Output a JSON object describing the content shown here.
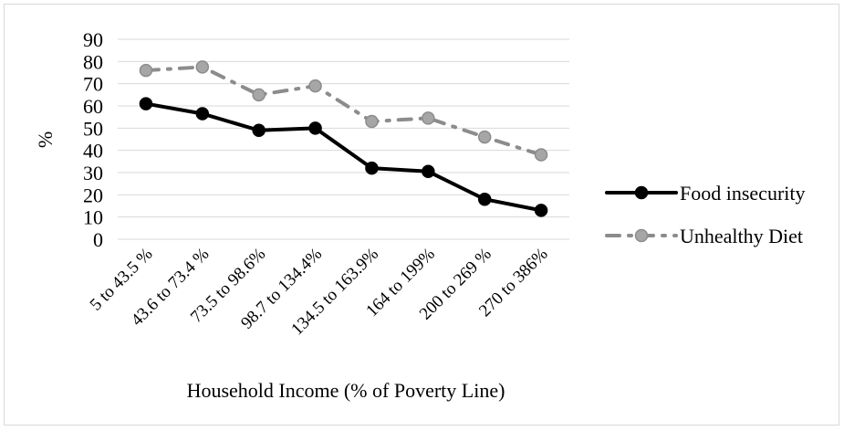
{
  "chart_data": {
    "type": "line",
    "title": "",
    "xlabel": "Household Income (% of Poverty Line)",
    "ylabel": "%",
    "ylim": [
      0,
      90
    ],
    "yticks": [
      0,
      10,
      20,
      30,
      40,
      50,
      60,
      70,
      80,
      90
    ],
    "grid": true,
    "legend_position": "right",
    "categories": [
      "5 to 43.5 %",
      "43.6 to 73.4 %",
      "73.5 to 98.6%",
      "98.7 to 134.4%",
      "134.5 to 163.9%",
      "164 to 199%",
      "200 to 269 %",
      "270 to 386%"
    ],
    "series": [
      {
        "name": "Food insecurity",
        "values": [
          61,
          56.5,
          49,
          50,
          32,
          30.5,
          18,
          13
        ],
        "color": "#000000",
        "marker_fill": "#000000",
        "dash": "solid"
      },
      {
        "name": "Unhealthy Diet",
        "values": [
          76,
          77.5,
          65,
          69,
          53,
          54.5,
          46,
          38
        ],
        "color": "#8c8c8c",
        "marker_fill": "#a6a6a6",
        "dash": "dashdot"
      }
    ]
  }
}
